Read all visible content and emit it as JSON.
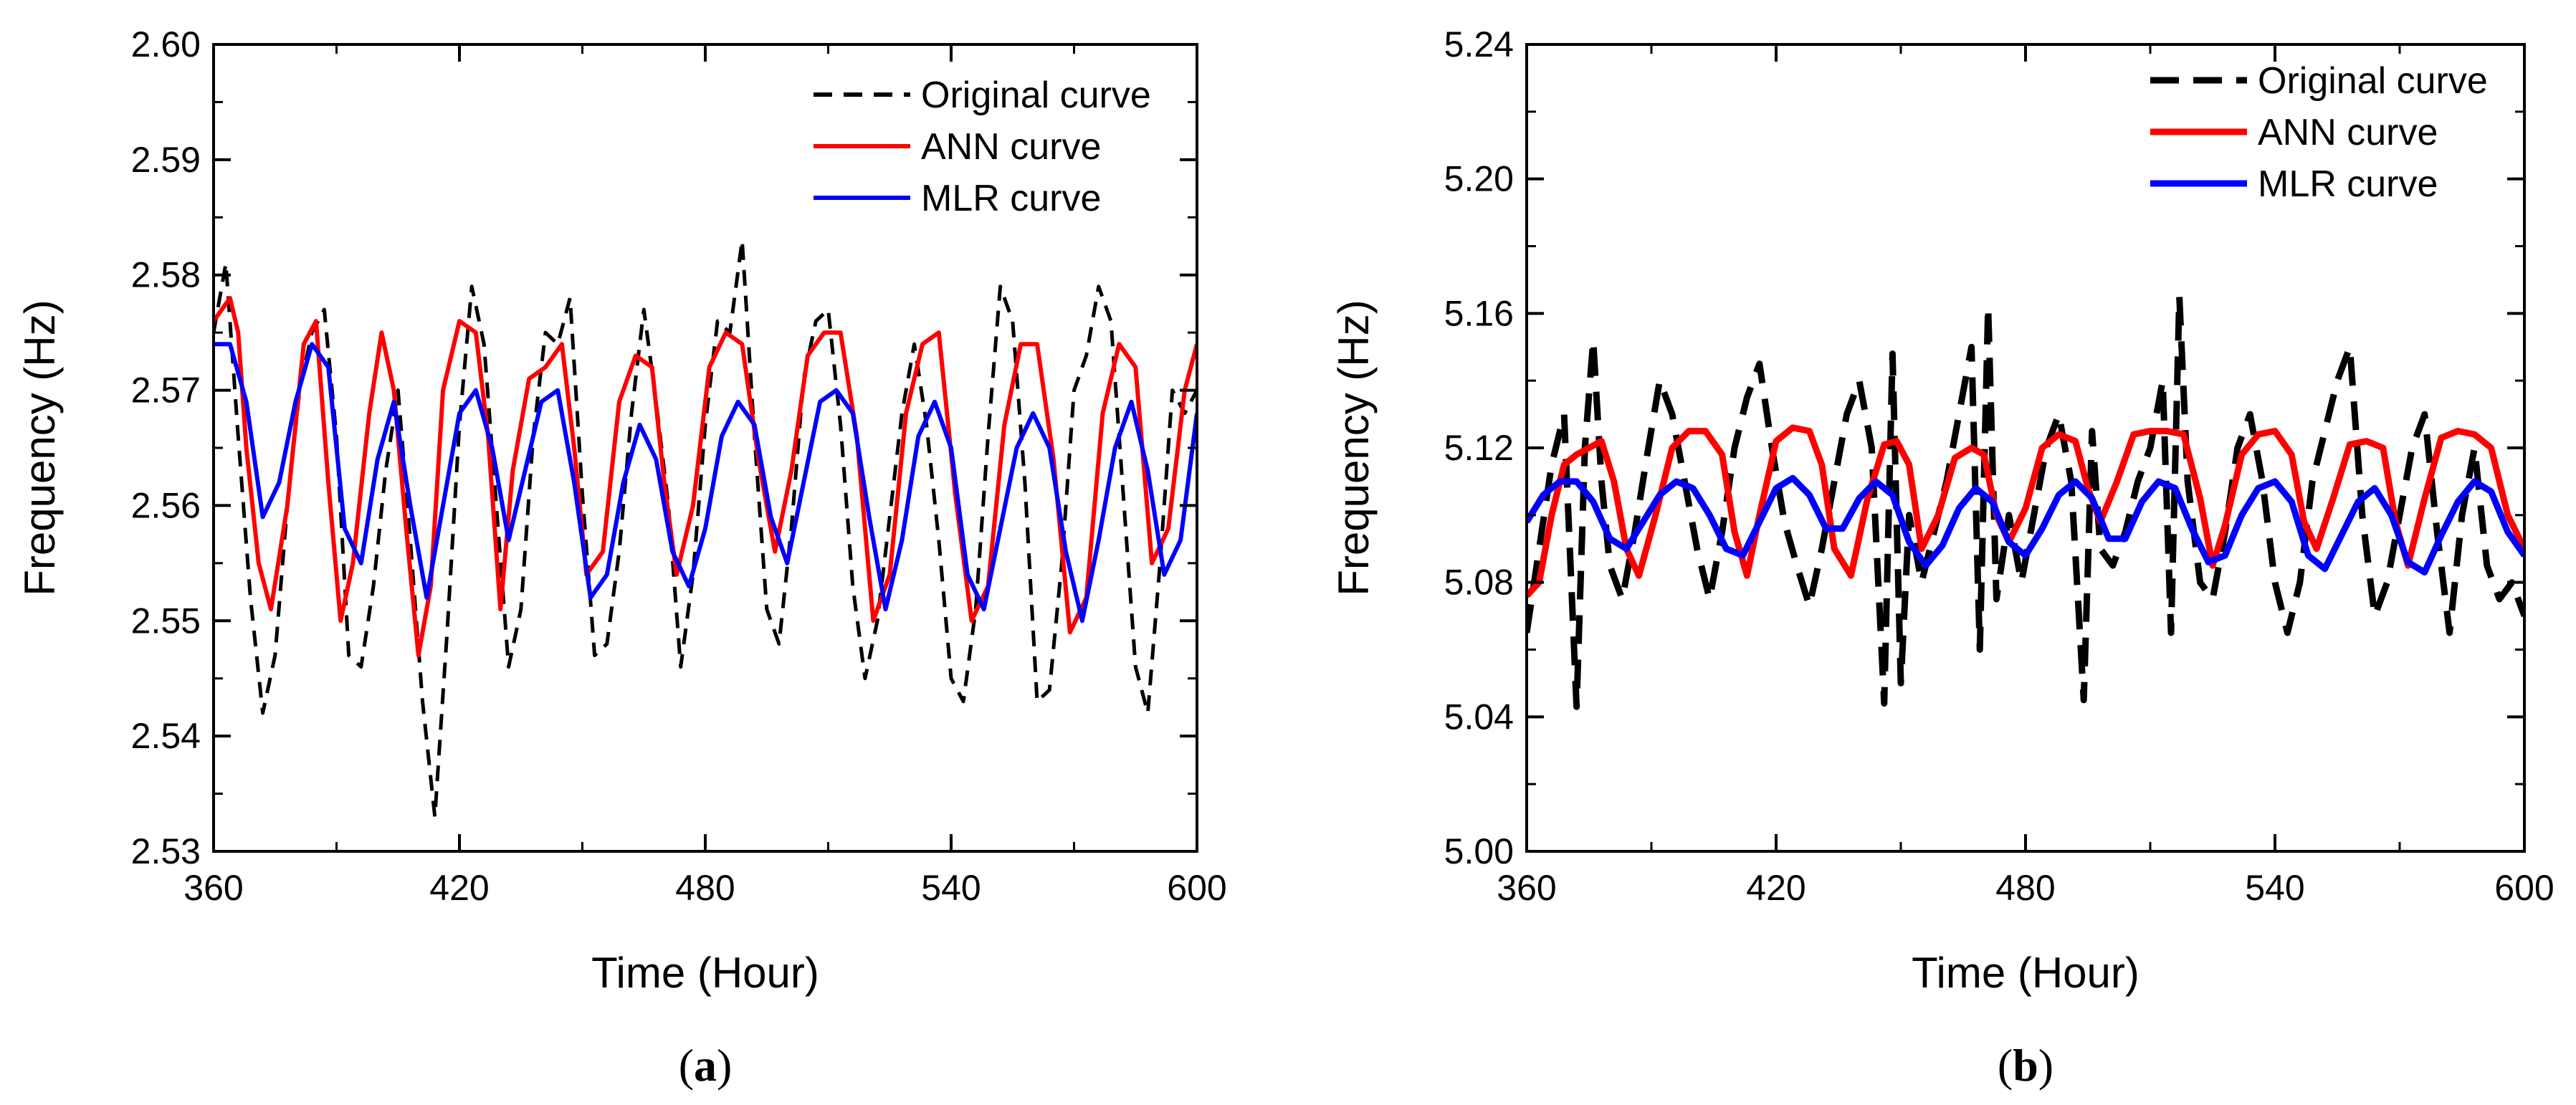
{
  "chart_data": [
    {
      "type": "line",
      "panel_label": "(a)",
      "panel_letter": "a",
      "xlabel": "Time (Hour)",
      "ylabel": "Frequency (Hz)",
      "xlim": [
        360,
        600
      ],
      "ylim": [
        2.53,
        2.6
      ],
      "x_ticks": [
        360,
        420,
        480,
        540,
        600
      ],
      "y_ticks": [
        2.53,
        2.54,
        2.55,
        2.56,
        2.57,
        2.58,
        2.59,
        2.6
      ],
      "y_tick_labels": [
        "2.53",
        "2.54",
        "2.55",
        "2.56",
        "2.57",
        "2.58",
        "2.59",
        "2.60"
      ],
      "legend_position": "top-right",
      "series": [
        {
          "name": "Original curve",
          "color": "#000000",
          "style": "dashed",
          "x": [
            360,
            363,
            366,
            369,
            372,
            375,
            378,
            381,
            384,
            387,
            390,
            393,
            396,
            399,
            402,
            405,
            408,
            411,
            414,
            417,
            420,
            423,
            426,
            429,
            432,
            435,
            438,
            441,
            444,
            447,
            450,
            453,
            456,
            459,
            462,
            465,
            468,
            471,
            474,
            477,
            480,
            483,
            486,
            489,
            492,
            495,
            498,
            501,
            504,
            507,
            510,
            513,
            516,
            519,
            522,
            525,
            528,
            531,
            534,
            537,
            540,
            543,
            546,
            549,
            552,
            555,
            558,
            561,
            564,
            567,
            570,
            573,
            576,
            579,
            582,
            585,
            588,
            591,
            594,
            597,
            600
          ],
          "y": [
            2.575,
            2.581,
            2.566,
            2.552,
            2.542,
            2.547,
            2.56,
            2.57,
            2.575,
            2.577,
            2.566,
            2.547,
            2.546,
            2.553,
            2.563,
            2.57,
            2.557,
            2.543,
            2.533,
            2.549,
            2.567,
            2.579,
            2.574,
            2.56,
            2.546,
            2.551,
            2.566,
            2.575,
            2.574,
            2.578,
            2.561,
            2.547,
            2.548,
            2.556,
            2.568,
            2.577,
            2.569,
            2.56,
            2.546,
            2.554,
            2.567,
            2.576,
            2.575,
            2.583,
            2.566,
            2.551,
            2.548,
            2.558,
            2.571,
            2.576,
            2.577,
            2.567,
            2.553,
            2.545,
            2.55,
            2.559,
            2.568,
            2.574,
            2.567,
            2.557,
            2.545,
            2.543,
            2.551,
            2.566,
            2.579,
            2.576,
            2.562,
            2.543,
            2.544,
            2.555,
            2.57,
            2.573,
            2.579,
            2.576,
            2.561,
            2.546,
            2.542,
            2.555,
            2.57,
            2.568,
            2.57
          ]
        },
        {
          "name": "ANN curve",
          "color": "#ff0000",
          "style": "solid",
          "x": [
            360,
            362,
            364,
            366,
            368,
            371,
            374,
            378,
            382,
            385,
            388,
            391,
            394,
            398,
            401,
            404,
            407,
            410,
            413,
            416,
            420,
            424,
            427,
            430,
            433,
            437,
            441,
            445,
            448,
            451,
            455,
            459,
            463,
            467,
            470,
            473,
            477,
            481,
            485,
            489,
            493,
            497,
            501,
            505,
            509,
            513,
            517,
            521,
            525,
            529,
            533,
            537,
            541,
            545,
            549,
            553,
            557,
            561,
            565,
            569,
            573,
            577,
            581,
            585,
            589,
            593,
            597,
            600
          ],
          "y": [
            2.576,
            2.577,
            2.578,
            2.575,
            2.565,
            2.555,
            2.551,
            2.56,
            2.574,
            2.576,
            2.562,
            2.55,
            2.555,
            2.568,
            2.575,
            2.57,
            2.558,
            2.547,
            2.553,
            2.57,
            2.576,
            2.575,
            2.566,
            2.551,
            2.563,
            2.571,
            2.572,
            2.574,
            2.565,
            2.554,
            2.556,
            2.569,
            2.573,
            2.572,
            2.562,
            2.554,
            2.56,
            2.572,
            2.575,
            2.574,
            2.564,
            2.556,
            2.563,
            2.573,
            2.575,
            2.575,
            2.566,
            2.55,
            2.554,
            2.568,
            2.574,
            2.575,
            2.561,
            2.55,
            2.553,
            2.567,
            2.574,
            2.574,
            2.564,
            2.549,
            2.552,
            2.568,
            2.574,
            2.572,
            2.555,
            2.558,
            2.57,
            2.574
          ]
        },
        {
          "name": "MLR curve",
          "color": "#0000ff",
          "style": "solid",
          "x": [
            360,
            364,
            368,
            372,
            376,
            380,
            384,
            388,
            392,
            396,
            400,
            404,
            408,
            412,
            416,
            420,
            424,
            428,
            432,
            436,
            440,
            444,
            448,
            452,
            456,
            460,
            464,
            468,
            472,
            476,
            480,
            484,
            488,
            492,
            496,
            500,
            504,
            508,
            512,
            516,
            520,
            524,
            528,
            532,
            536,
            540,
            544,
            548,
            552,
            556,
            560,
            564,
            568,
            572,
            576,
            580,
            584,
            588,
            592,
            596,
            600
          ],
          "y": [
            2.574,
            2.574,
            2.569,
            2.559,
            2.562,
            2.569,
            2.574,
            2.572,
            2.558,
            2.555,
            2.564,
            2.569,
            2.56,
            2.552,
            2.56,
            2.568,
            2.57,
            2.565,
            2.557,
            2.563,
            2.569,
            2.57,
            2.562,
            2.552,
            2.554,
            2.562,
            2.567,
            2.564,
            2.556,
            2.553,
            2.558,
            2.566,
            2.569,
            2.567,
            2.559,
            2.555,
            2.562,
            2.569,
            2.57,
            2.568,
            2.559,
            2.551,
            2.557,
            2.566,
            2.569,
            2.565,
            2.554,
            2.551,
            2.558,
            2.565,
            2.568,
            2.565,
            2.556,
            2.55,
            2.557,
            2.565,
            2.569,
            2.563,
            2.554,
            2.557,
            2.568
          ]
        }
      ]
    },
    {
      "type": "line",
      "panel_label": "(b)",
      "panel_letter": "b",
      "xlabel": "Time (Hour)",
      "ylabel": "Frequency (Hz)",
      "xlim": [
        360,
        600
      ],
      "ylim": [
        5.0,
        5.24
      ],
      "x_ticks": [
        360,
        420,
        480,
        540,
        600
      ],
      "y_ticks": [
        5.0,
        5.04,
        5.08,
        5.12,
        5.16,
        5.2,
        5.24
      ],
      "y_tick_labels": [
        "5.00",
        "5.04",
        "5.08",
        "5.12",
        "5.16",
        "5.20",
        "5.24"
      ],
      "legend_position": "top-right",
      "series": [
        {
          "name": "Original curve",
          "color": "#000000",
          "style": "dashed",
          "x": [
            360,
            363,
            366,
            369,
            372,
            374,
            376,
            378,
            380,
            383,
            386,
            389,
            392,
            395,
            398,
            401,
            404,
            407,
            410,
            413,
            416,
            419,
            422,
            425,
            428,
            431,
            434,
            437,
            440,
            443,
            446,
            448,
            450,
            452,
            455,
            458,
            461,
            464,
            467,
            469,
            471,
            473,
            476,
            479,
            482,
            485,
            488,
            491,
            494,
            496,
            498,
            501,
            504,
            507,
            510,
            513,
            515,
            517,
            519,
            522,
            525,
            528,
            531,
            534,
            537,
            540,
            543,
            546,
            549,
            552,
            555,
            558,
            561,
            564,
            567,
            570,
            573,
            576,
            579,
            582,
            585,
            588,
            591,
            594,
            597,
            600
          ],
          "y": [
            5.065,
            5.09,
            5.115,
            5.13,
            5.043,
            5.12,
            5.152,
            5.11,
            5.085,
            5.075,
            5.095,
            5.118,
            5.14,
            5.13,
            5.11,
            5.09,
            5.075,
            5.095,
            5.12,
            5.135,
            5.145,
            5.12,
            5.098,
            5.085,
            5.073,
            5.09,
            5.11,
            5.13,
            5.14,
            5.12,
            5.044,
            5.148,
            5.05,
            5.1,
            5.08,
            5.095,
            5.11,
            5.13,
            5.15,
            5.06,
            5.162,
            5.075,
            5.1,
            5.08,
            5.1,
            5.12,
            5.13,
            5.11,
            5.045,
            5.125,
            5.09,
            5.085,
            5.095,
            5.11,
            5.12,
            5.14,
            5.065,
            5.165,
            5.11,
            5.08,
            5.075,
            5.095,
            5.12,
            5.13,
            5.11,
            5.08,
            5.065,
            5.08,
            5.11,
            5.125,
            5.14,
            5.15,
            5.1,
            5.07,
            5.08,
            5.1,
            5.12,
            5.13,
            5.095,
            5.065,
            5.1,
            5.12,
            5.085,
            5.075,
            5.08,
            5.07
          ]
        },
        {
          "name": "ANN curve",
          "color": "#ff0000",
          "style": "solid",
          "x": [
            360,
            363,
            366,
            369,
            372,
            375,
            378,
            381,
            384,
            387,
            391,
            395,
            399,
            403,
            407,
            410,
            413,
            416,
            420,
            424,
            428,
            431,
            434,
            438,
            442,
            446,
            449,
            452,
            455,
            459,
            463,
            467,
            470,
            473,
            476,
            480,
            484,
            488,
            492,
            495,
            498,
            502,
            506,
            510,
            514,
            518,
            522,
            525,
            528,
            532,
            536,
            540,
            544,
            547,
            550,
            554,
            558,
            562,
            566,
            569,
            572,
            576,
            580,
            584,
            588,
            592,
            596,
            600
          ],
          "y": [
            5.076,
            5.08,
            5.1,
            5.115,
            5.118,
            5.12,
            5.122,
            5.11,
            5.09,
            5.082,
            5.1,
            5.12,
            5.125,
            5.125,
            5.118,
            5.095,
            5.082,
            5.1,
            5.122,
            5.126,
            5.125,
            5.115,
            5.09,
            5.082,
            5.105,
            5.121,
            5.122,
            5.115,
            5.09,
            5.1,
            5.117,
            5.12,
            5.118,
            5.1,
            5.092,
            5.102,
            5.12,
            5.124,
            5.122,
            5.108,
            5.098,
            5.11,
            5.124,
            5.125,
            5.125,
            5.124,
            5.105,
            5.085,
            5.097,
            5.118,
            5.124,
            5.125,
            5.118,
            5.098,
            5.09,
            5.105,
            5.121,
            5.122,
            5.12,
            5.098,
            5.085,
            5.105,
            5.123,
            5.125,
            5.124,
            5.12,
            5.1,
            5.09
          ]
        },
        {
          "name": "MLR curve",
          "color": "#0000ff",
          "style": "solid",
          "x": [
            360,
            364,
            368,
            372,
            376,
            380,
            384,
            388,
            392,
            396,
            400,
            404,
            408,
            412,
            416,
            420,
            424,
            428,
            432,
            436,
            440,
            444,
            448,
            452,
            456,
            460,
            464,
            468,
            472,
            476,
            480,
            484,
            488,
            492,
            496,
            500,
            504,
            508,
            512,
            516,
            520,
            524,
            528,
            532,
            536,
            540,
            544,
            548,
            552,
            556,
            560,
            564,
            568,
            572,
            576,
            580,
            584,
            588,
            592,
            596,
            600
          ],
          "y": [
            5.098,
            5.106,
            5.11,
            5.11,
            5.104,
            5.093,
            5.09,
            5.098,
            5.106,
            5.11,
            5.108,
            5.1,
            5.09,
            5.088,
            5.098,
            5.108,
            5.111,
            5.106,
            5.096,
            5.096,
            5.105,
            5.11,
            5.106,
            5.092,
            5.085,
            5.091,
            5.102,
            5.108,
            5.104,
            5.092,
            5.088,
            5.096,
            5.106,
            5.11,
            5.105,
            5.093,
            5.093,
            5.104,
            5.11,
            5.108,
            5.096,
            5.086,
            5.088,
            5.1,
            5.108,
            5.11,
            5.104,
            5.088,
            5.084,
            5.094,
            5.104,
            5.108,
            5.1,
            5.086,
            5.083,
            5.094,
            5.104,
            5.11,
            5.107,
            5.095,
            5.088
          ]
        }
      ]
    }
  ]
}
